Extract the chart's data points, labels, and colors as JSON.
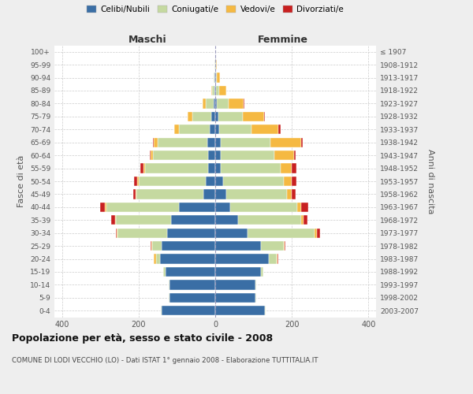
{
  "age_groups": [
    "0-4",
    "5-9",
    "10-14",
    "15-19",
    "20-24",
    "25-29",
    "30-34",
    "35-39",
    "40-44",
    "45-49",
    "50-54",
    "55-59",
    "60-64",
    "65-69",
    "70-74",
    "75-79",
    "80-84",
    "85-89",
    "90-94",
    "95-99",
    "100+"
  ],
  "birth_years": [
    "2003-2007",
    "1998-2002",
    "1993-1997",
    "1988-1992",
    "1983-1987",
    "1978-1982",
    "1973-1977",
    "1968-1972",
    "1963-1967",
    "1958-1962",
    "1953-1957",
    "1948-1952",
    "1943-1947",
    "1938-1942",
    "1933-1937",
    "1928-1932",
    "1923-1927",
    "1918-1922",
    "1913-1917",
    "1908-1912",
    "≤ 1907"
  ],
  "maschi": {
    "celibi": [
      140,
      120,
      120,
      130,
      145,
      140,
      125,
      115,
      95,
      30,
      25,
      18,
      18,
      20,
      15,
      10,
      5,
      3,
      2,
      1,
      0
    ],
    "coniugati": [
      2,
      2,
      2,
      5,
      10,
      25,
      130,
      145,
      190,
      175,
      175,
      165,
      145,
      130,
      80,
      50,
      20,
      5,
      2,
      1,
      0
    ],
    "vedovi": [
      0,
      0,
      0,
      0,
      5,
      2,
      2,
      2,
      3,
      2,
      3,
      5,
      5,
      10,
      12,
      12,
      8,
      3,
      1,
      0,
      0
    ],
    "divorziati": [
      0,
      0,
      0,
      0,
      0,
      2,
      3,
      10,
      12,
      8,
      10,
      8,
      2,
      2,
      0,
      0,
      0,
      0,
      0,
      0,
      0
    ]
  },
  "femmine": {
    "nubili": [
      130,
      105,
      105,
      120,
      140,
      120,
      85,
      60,
      40,
      28,
      20,
      15,
      15,
      15,
      10,
      8,
      5,
      3,
      2,
      1,
      0
    ],
    "coniugate": [
      2,
      2,
      2,
      5,
      20,
      60,
      175,
      165,
      175,
      160,
      160,
      155,
      140,
      130,
      85,
      65,
      30,
      8,
      2,
      1,
      0
    ],
    "vedove": [
      0,
      0,
      0,
      0,
      2,
      2,
      5,
      5,
      10,
      12,
      20,
      30,
      50,
      80,
      70,
      55,
      40,
      18,
      8,
      2,
      0
    ],
    "divorziate": [
      0,
      0,
      0,
      0,
      2,
      2,
      8,
      10,
      18,
      10,
      12,
      12,
      5,
      3,
      5,
      2,
      2,
      0,
      0,
      0,
      0
    ]
  },
  "colors": {
    "celibi": "#3a6ea5",
    "coniugati": "#c5d9a0",
    "vedovi": "#f5b942",
    "divorziati": "#c82020"
  },
  "legend_labels": [
    "Celibi/Nubili",
    "Coniugati/e",
    "Vedovi/e",
    "Divorziati/e"
  ],
  "title": "Popolazione per età, sesso e stato civile - 2008",
  "subtitle": "COMUNE DI LODI VECCHIO (LO) - Dati ISTAT 1° gennaio 2008 - Elaborazione TUTTITALIA.IT",
  "ylabel_left": "Fasce di età",
  "ylabel_right": "Anni di nascita",
  "label_maschi": "Maschi",
  "label_femmine": "Femmine",
  "xlim": 420,
  "bg_color": "#eeeeee",
  "plot_bg": "#ffffff"
}
